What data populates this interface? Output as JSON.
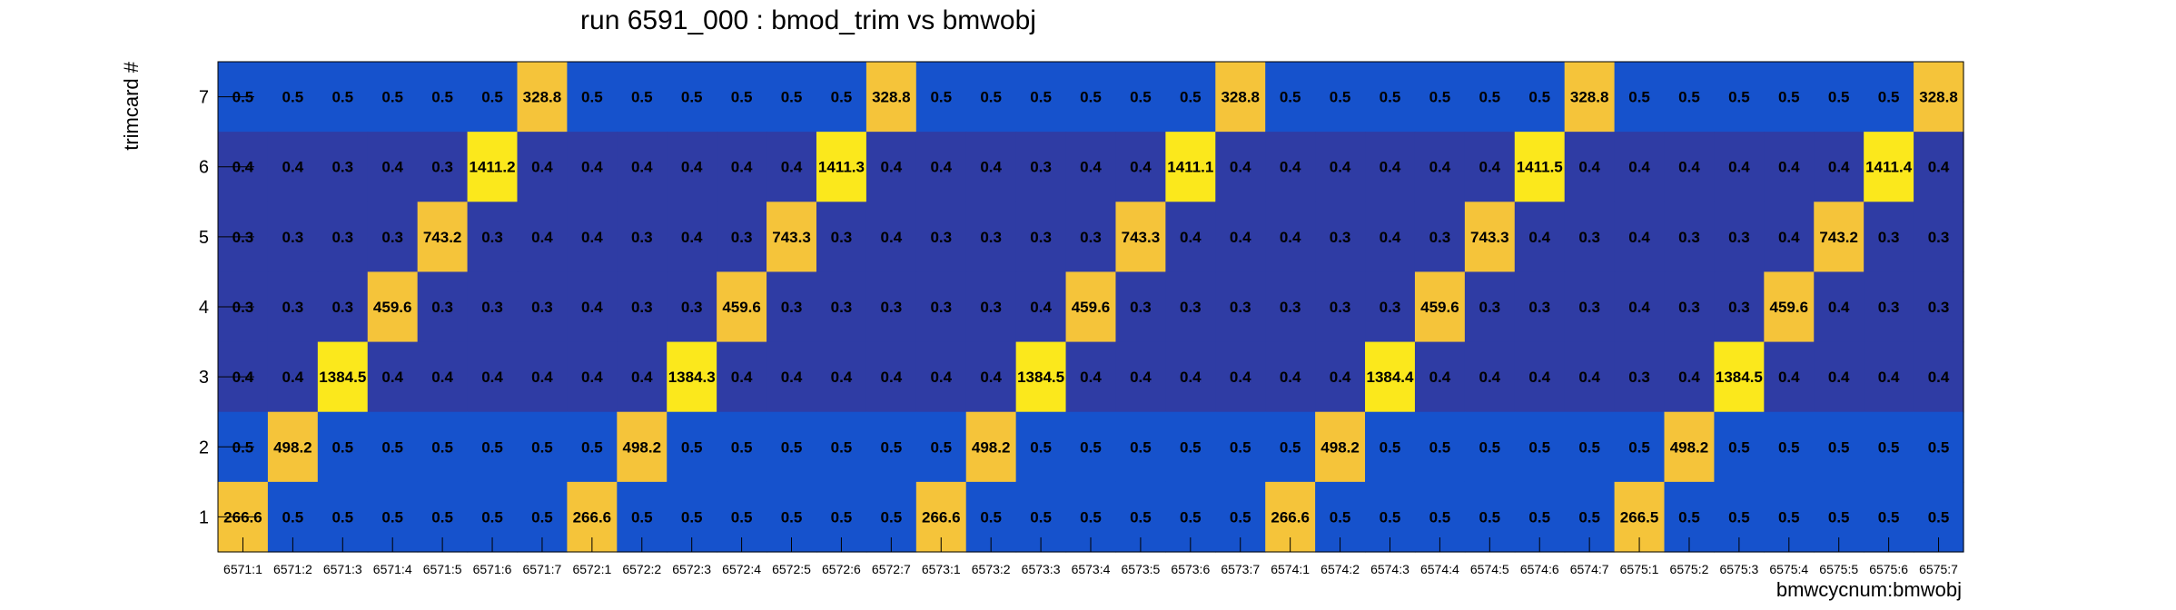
{
  "chart_data": {
    "type": "heatmap",
    "title": "run 6591_000 : bmod_trim vs bmwobj",
    "xlabel": "bmwcycnum:bmwobj",
    "ylabel": "trimcard #",
    "x_categories": [
      "6571:1",
      "6571:2",
      "6571:3",
      "6571:4",
      "6571:5",
      "6571:6",
      "6571:7",
      "6572:1",
      "6572:2",
      "6572:3",
      "6572:4",
      "6572:5",
      "6572:6",
      "6572:7",
      "6573:1",
      "6573:2",
      "6573:3",
      "6573:4",
      "6573:5",
      "6573:6",
      "6573:7",
      "6574:1",
      "6574:2",
      "6574:3",
      "6574:4",
      "6574:5",
      "6574:6",
      "6574:7",
      "6575:1",
      "6575:2",
      "6575:3",
      "6575:4",
      "6575:5",
      "6575:6",
      "6575:7"
    ],
    "y_categories": [
      "1",
      "2",
      "3",
      "4",
      "5",
      "6",
      "7"
    ],
    "rows": [
      {
        "y": "7",
        "values": [
          "0.5",
          "0.5",
          "0.5",
          "0.5",
          "0.5",
          "0.5",
          "328.8",
          "0.5",
          "0.5",
          "0.5",
          "0.5",
          "0.5",
          "0.5",
          "328.8",
          "0.5",
          "0.5",
          "0.5",
          "0.5",
          "0.5",
          "0.5",
          "328.8",
          "0.5",
          "0.5",
          "0.5",
          "0.5",
          "0.5",
          "0.5",
          "328.8",
          "0.5",
          "0.5",
          "0.5",
          "0.5",
          "0.5",
          "0.5",
          "328.8"
        ]
      },
      {
        "y": "6",
        "values": [
          "0.4",
          "0.4",
          "0.3",
          "0.4",
          "0.3",
          "1411.2",
          "0.4",
          "0.4",
          "0.4",
          "0.4",
          "0.4",
          "0.4",
          "1411.3",
          "0.4",
          "0.4",
          "0.4",
          "0.3",
          "0.4",
          "0.4",
          "1411.1",
          "0.4",
          "0.4",
          "0.4",
          "0.4",
          "0.4",
          "0.4",
          "1411.5",
          "0.4",
          "0.4",
          "0.4",
          "0.4",
          "0.4",
          "0.4",
          "1411.4",
          "0.4"
        ]
      },
      {
        "y": "5",
        "values": [
          "0.3",
          "0.3",
          "0.3",
          "0.3",
          "743.2",
          "0.3",
          "0.4",
          "0.4",
          "0.3",
          "0.4",
          "0.3",
          "743.3",
          "0.3",
          "0.4",
          "0.3",
          "0.3",
          "0.3",
          "0.3",
          "743.3",
          "0.4",
          "0.4",
          "0.4",
          "0.3",
          "0.4",
          "0.3",
          "743.3",
          "0.4",
          "0.3",
          "0.4",
          "0.3",
          "0.3",
          "0.4",
          "743.2",
          "0.3",
          "0.3"
        ]
      },
      {
        "y": "4",
        "values": [
          "0.3",
          "0.3",
          "0.3",
          "459.6",
          "0.3",
          "0.3",
          "0.3",
          "0.4",
          "0.3",
          "0.3",
          "459.6",
          "0.3",
          "0.3",
          "0.3",
          "0.3",
          "0.3",
          "0.4",
          "459.6",
          "0.3",
          "0.3",
          "0.3",
          "0.3",
          "0.3",
          "0.3",
          "459.6",
          "0.3",
          "0.3",
          "0.3",
          "0.4",
          "0.3",
          "0.3",
          "459.6",
          "0.4",
          "0.3",
          "0.3"
        ]
      },
      {
        "y": "3",
        "values": [
          "0.4",
          "0.4",
          "1384.5",
          "0.4",
          "0.4",
          "0.4",
          "0.4",
          "0.4",
          "0.4",
          "1384.3",
          "0.4",
          "0.4",
          "0.4",
          "0.4",
          "0.4",
          "0.4",
          "1384.5",
          "0.4",
          "0.4",
          "0.4",
          "0.4",
          "0.4",
          "0.4",
          "1384.4",
          "0.4",
          "0.4",
          "0.4",
          "0.4",
          "0.3",
          "0.4",
          "1384.5",
          "0.4",
          "0.4",
          "0.4",
          "0.4"
        ]
      },
      {
        "y": "2",
        "values": [
          "0.5",
          "498.2",
          "0.5",
          "0.5",
          "0.5",
          "0.5",
          "0.5",
          "0.5",
          "498.2",
          "0.5",
          "0.5",
          "0.5",
          "0.5",
          "0.5",
          "0.5",
          "498.2",
          "0.5",
          "0.5",
          "0.5",
          "0.5",
          "0.5",
          "0.5",
          "498.2",
          "0.5",
          "0.5",
          "0.5",
          "0.5",
          "0.5",
          "0.5",
          "498.2",
          "0.5",
          "0.5",
          "0.5",
          "0.5",
          "0.5"
        ]
      },
      {
        "y": "1",
        "values": [
          "266.6",
          "0.5",
          "0.5",
          "0.5",
          "0.5",
          "0.5",
          "0.5",
          "266.6",
          "0.5",
          "0.5",
          "0.5",
          "0.5",
          "0.5",
          "0.5",
          "266.6",
          "0.5",
          "0.5",
          "0.5",
          "0.5",
          "0.5",
          "0.5",
          "266.6",
          "0.5",
          "0.5",
          "0.5",
          "0.5",
          "0.5",
          "0.5",
          "266.5",
          "0.5",
          "0.5",
          "0.5",
          "0.5",
          "0.5",
          "0.5"
        ]
      }
    ],
    "colors": {
      "low": "#2f3ca4",
      "mid": "#1652cc",
      "high_orange": "#f5c43a",
      "high_yellow": "#fbe81c",
      "frame": "#000000",
      "background": "#ffffff"
    }
  }
}
